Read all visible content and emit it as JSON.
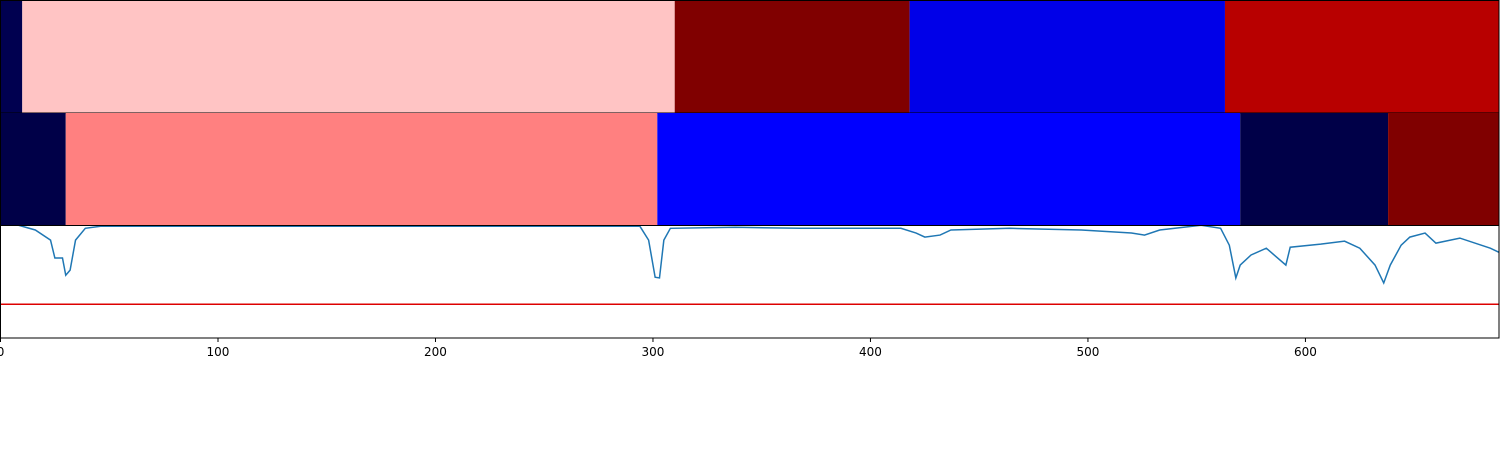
{
  "chart_data": {
    "type": "line",
    "xlim": [
      0,
      689
    ],
    "ylim": [
      0,
      1
    ],
    "xticks": [
      0,
      100,
      200,
      300,
      400,
      500,
      600
    ],
    "color": "#1f77b4",
    "x": [
      0,
      16,
      23,
      25,
      28.5,
      30,
      32,
      34.5,
      39,
      46,
      294,
      298,
      301,
      303,
      305,
      308,
      338,
      368,
      414,
      421,
      425,
      432,
      437,
      464,
      497,
      520,
      526,
      533,
      552,
      561,
      565,
      568,
      570,
      575,
      582,
      591,
      593,
      607,
      618,
      625,
      632,
      636,
      639,
      644,
      648,
      655,
      660,
      671,
      685,
      689
    ],
    "values": [
      0.349,
      0.32,
      0.29,
      0.237,
      0.237,
      0.186,
      0.201,
      0.29,
      0.325,
      0.331,
      0.331,
      0.29,
      0.18,
      0.178,
      0.29,
      0.325,
      0.328,
      0.325,
      0.325,
      0.311,
      0.299,
      0.305,
      0.32,
      0.325,
      0.32,
      0.311,
      0.305,
      0.32,
      0.334,
      0.325,
      0.275,
      0.178,
      0.216,
      0.246,
      0.266,
      0.216,
      0.269,
      0.278,
      0.287,
      0.266,
      0.216,
      0.163,
      0.216,
      0.275,
      0.299,
      0.311,
      0.281,
      0.296,
      0.266,
      0.254
    ],
    "threshold": {
      "value": 0.1,
      "color": "#dd0000"
    },
    "bands": [
      {
        "segments": [
          {
            "start": 0,
            "end": 10,
            "color": "#000050"
          },
          {
            "start": 10,
            "end": 310,
            "color": "#ffc4c4"
          },
          {
            "start": 310,
            "end": 418,
            "color": "#800000"
          },
          {
            "start": 418,
            "end": 563,
            "color": "#0000e8"
          },
          {
            "start": 563,
            "end": 689,
            "color": "#b80000"
          }
        ]
      },
      {
        "segments": [
          {
            "start": 0,
            "end": 30,
            "color": "#000048"
          },
          {
            "start": 30,
            "end": 302,
            "color": "#ff8080"
          },
          {
            "start": 302,
            "end": 570,
            "color": "#0000ff"
          },
          {
            "start": 570,
            "end": 638,
            "color": "#000048"
          },
          {
            "start": 638,
            "end": 689,
            "color": "#800000"
          }
        ]
      }
    ]
  }
}
